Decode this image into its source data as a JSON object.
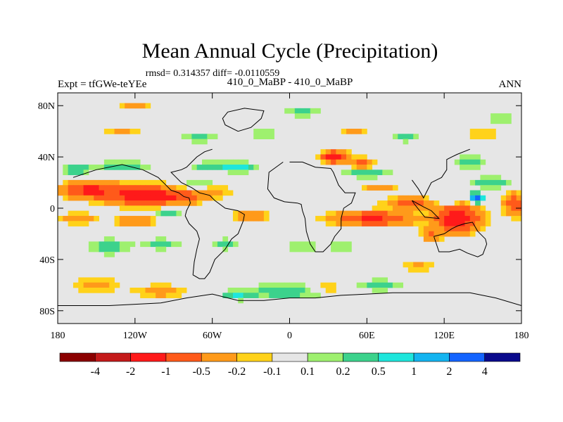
{
  "chart_data": {
    "type": "heatmap",
    "title": "Mean Annual Cycle (Precipitation)",
    "subtitle": "rmsd= 0.314357 diff= -0.0110559",
    "left_string": "Expt = tfGWe-teYEe",
    "center_string": "410_0_MaBP - 410_0_MaBP",
    "right_string": "ANN",
    "x_ticks": [
      {
        "value": -180,
        "label": "180"
      },
      {
        "value": -120,
        "label": "120W"
      },
      {
        "value": -60,
        "label": "60W"
      },
      {
        "value": 0,
        "label": "0"
      },
      {
        "value": 60,
        "label": "60E"
      },
      {
        "value": 120,
        "label": "120E"
      },
      {
        "value": 180,
        "label": "180"
      }
    ],
    "y_ticks": [
      {
        "value": 80,
        "label": "80N"
      },
      {
        "value": 40,
        "label": "40N"
      },
      {
        "value": 0,
        "label": "0"
      },
      {
        "value": -40,
        "label": "40S"
      },
      {
        "value": -80,
        "label": "80S"
      }
    ],
    "xlim": [
      -180,
      180
    ],
    "ylim": [
      -90,
      90
    ],
    "colorbar": {
      "levels": [
        -4,
        -2,
        -1,
        -0.5,
        -0.2,
        -0.1,
        0.1,
        0.2,
        0.5,
        1,
        2,
        4
      ],
      "labels": [
        "-4",
        "-2",
        "-1",
        "-0.5",
        "-0.2",
        "-0.1",
        "0.1",
        "0.2",
        "0.5",
        "1",
        "2",
        "4"
      ],
      "colors": [
        "#8b0000",
        "#c41a1a",
        "#ff1a1a",
        "#ff5a1a",
        "#ff9a1a",
        "#ffd21a",
        "#e6e6e6",
        "#9ef06e",
        "#3cd28c",
        "#1ee6dc",
        "#14b4f0",
        "#1464ff",
        "#0a0a8c"
      ]
    },
    "fields": {
      "background_value": 0.0,
      "anomalies": [
        {
          "lon": -155,
          "lat": 14,
          "rlon": 18,
          "rlat": 6,
          "value": -1.2
        },
        {
          "lon": -115,
          "lat": 10,
          "rlon": 22,
          "rlat": 7,
          "value": -1.5
        },
        {
          "lon": -85,
          "lat": 9,
          "rlon": 18,
          "rlat": 5,
          "value": -0.7
        },
        {
          "lon": -60,
          "lat": 13,
          "rlon": 12,
          "rlat": 4,
          "value": -0.4
        },
        {
          "lon": -165,
          "lat": -8,
          "rlon": 14,
          "rlat": 4,
          "value": -0.4
        },
        {
          "lon": -120,
          "lat": -10,
          "rlon": 14,
          "rlat": 4,
          "value": -0.6
        },
        {
          "lon": -95,
          "lat": -4,
          "rlon": 10,
          "rlat": 3,
          "value": 0.3
        },
        {
          "lon": 65,
          "lat": -8,
          "rlon": 28,
          "rlat": 5,
          "value": -1.1
        },
        {
          "lon": 95,
          "lat": 4,
          "rlon": 18,
          "rlat": 4,
          "value": -0.7
        },
        {
          "lon": 130,
          "lat": -8,
          "rlon": 15,
          "rlat": 9,
          "value": -1.6
        },
        {
          "lon": 110,
          "lat": -20,
          "rlon": 8,
          "rlat": 5,
          "value": -0.5
        },
        {
          "lon": 35,
          "lat": 40,
          "rlon": 9,
          "rlat": 4,
          "value": -1.4
        },
        {
          "lon": 55,
          "lat": 35,
          "rlon": 10,
          "rlat": 4,
          "value": -0.6
        },
        {
          "lon": 70,
          "lat": 16,
          "rlon": 12,
          "rlat": 3,
          "value": -0.4
        },
        {
          "lon": 175,
          "lat": 3,
          "rlon": 8,
          "rlat": 8,
          "value": -0.8
        },
        {
          "lon": -30,
          "lat": -6,
          "rlon": 14,
          "rlat": 4,
          "value": -0.4
        },
        {
          "lon": -60,
          "lat": 33,
          "rlon": 14,
          "rlat": 3,
          "value": 0.4
        },
        {
          "lon": -40,
          "lat": 32,
          "rlon": 10,
          "rlat": 3,
          "value": 0.9
        },
        {
          "lon": -130,
          "lat": 33,
          "rlon": 20,
          "rlat": 3,
          "value": 0.4
        },
        {
          "lon": -165,
          "lat": 30,
          "rlon": 10,
          "rlat": 3,
          "value": 0.5
        },
        {
          "lon": -70,
          "lat": 18,
          "rlon": 12,
          "rlat": 3,
          "value": 0.3
        },
        {
          "lon": 60,
          "lat": 28,
          "rlon": 20,
          "rlat": 4,
          "value": 0.3
        },
        {
          "lon": 140,
          "lat": 36,
          "rlon": 10,
          "rlat": 5,
          "value": 0.3
        },
        {
          "lon": 155,
          "lat": 20,
          "rlon": 14,
          "rlat": 4,
          "value": 0.4
        },
        {
          "lon": 145,
          "lat": 8,
          "rlon": 4,
          "rlat": 3,
          "value": 2.5
        },
        {
          "lon": 120,
          "lat": 5,
          "rlon": 10,
          "rlat": 4,
          "value": 0.3
        },
        {
          "lon": -140,
          "lat": -30,
          "rlon": 16,
          "rlat": 6,
          "value": 0.3
        },
        {
          "lon": -100,
          "lat": -28,
          "rlon": 14,
          "rlat": 4,
          "value": 0.3
        },
        {
          "lon": -50,
          "lat": -28,
          "rlon": 10,
          "rlat": 4,
          "value": 0.3
        },
        {
          "lon": 10,
          "lat": -30,
          "rlon": 10,
          "rlat": 3,
          "value": 0.3
        },
        {
          "lon": 40,
          "lat": -30,
          "rlon": 12,
          "rlat": 3,
          "value": 0.3
        },
        {
          "lon": -5,
          "lat": -65,
          "rlon": 30,
          "rlat": 6,
          "value": 0.3
        },
        {
          "lon": 70,
          "lat": -60,
          "rlon": 18,
          "rlat": 4,
          "value": 0.3
        },
        {
          "lon": -40,
          "lat": -68,
          "rlon": 10,
          "rlat": 3,
          "value": 0.5
        },
        {
          "lon": -100,
          "lat": -65,
          "rlon": 20,
          "rlat": 5,
          "value": -0.3
        },
        {
          "lon": -150,
          "lat": -60,
          "rlon": 18,
          "rlat": 5,
          "value": -0.3
        },
        {
          "lon": 30,
          "lat": -62,
          "rlon": 12,
          "rlat": 3,
          "value": -0.3
        },
        {
          "lon": 100,
          "lat": -45,
          "rlon": 10,
          "rlat": 4,
          "value": -0.3
        },
        {
          "lon": -70,
          "lat": 55,
          "rlon": 14,
          "rlat": 3,
          "value": 0.3
        },
        {
          "lon": -20,
          "lat": 58,
          "rlon": 12,
          "rlat": 3,
          "value": 0.3
        },
        {
          "lon": 90,
          "lat": 55,
          "rlon": 12,
          "rlat": 3,
          "value": 0.3
        },
        {
          "lon": 150,
          "lat": 58,
          "rlon": 10,
          "rlat": 3,
          "value": -0.3
        },
        {
          "lon": -130,
          "lat": 60,
          "rlon": 12,
          "rlat": 3,
          "value": -0.3
        },
        {
          "lon": 50,
          "lat": 60,
          "rlon": 10,
          "rlat": 3,
          "value": -0.3
        },
        {
          "lon": 165,
          "lat": 70,
          "rlon": 10,
          "rlat": 3,
          "value": 0.3
        },
        {
          "lon": 10,
          "lat": 75,
          "rlon": 14,
          "rlat": 3,
          "value": 0.3
        },
        {
          "lon": -120,
          "lat": 80,
          "rlon": 12,
          "rlat": 2,
          "value": -0.3
        }
      ]
    },
    "coastlines": [
      [
        [
          -168,
          24
        ],
        [
          -150,
          30
        ],
        [
          -130,
          34
        ],
        [
          -114,
          30
        ],
        [
          -102,
          24
        ],
        [
          -96,
          18
        ],
        [
          -92,
          14
        ],
        [
          -86,
          12
        ],
        [
          -82,
          9
        ],
        [
          -78,
          8
        ],
        [
          -77,
          4
        ],
        [
          -80,
          -2
        ],
        [
          -81,
          -6
        ],
        [
          -78,
          -12
        ],
        [
          -72,
          -18
        ],
        [
          -70,
          -24
        ],
        [
          -72,
          -32
        ],
        [
          -74,
          -42
        ],
        [
          -75,
          -52
        ],
        [
          -70,
          -55
        ],
        [
          -66,
          -55
        ],
        [
          -62,
          -50
        ],
        [
          -58,
          -40
        ],
        [
          -50,
          -32
        ],
        [
          -45,
          -24
        ],
        [
          -40,
          -20
        ],
        [
          -36,
          -10
        ],
        [
          -35,
          -5
        ],
        [
          -40,
          -2
        ],
        [
          -50,
          0
        ],
        [
          -58,
          6
        ],
        [
          -62,
          10
        ],
        [
          -70,
          12
        ],
        [
          -76,
          16
        ],
        [
          -84,
          20
        ],
        [
          -88,
          24
        ],
        [
          -92,
          28
        ],
        [
          -84,
          30
        ],
        [
          -80,
          32
        ],
        [
          -76,
          36
        ],
        [
          -72,
          40
        ],
        [
          -66,
          44
        ],
        [
          -60,
          46
        ]
      ],
      [
        [
          -5,
          36
        ],
        [
          -16,
          28
        ],
        [
          -17,
          15
        ],
        [
          -12,
          8
        ],
        [
          -4,
          5
        ],
        [
          6,
          4
        ],
        [
          9,
          3
        ],
        [
          10,
          -2
        ],
        [
          12,
          -8
        ],
        [
          13,
          -18
        ],
        [
          16,
          -28
        ],
        [
          20,
          -34
        ],
        [
          26,
          -34
        ],
        [
          32,
          -28
        ],
        [
          35,
          -22
        ],
        [
          40,
          -16
        ],
        [
          40,
          -8
        ],
        [
          42,
          0
        ],
        [
          48,
          4
        ],
        [
          51,
          12
        ],
        [
          43,
          12
        ],
        [
          38,
          18
        ],
        [
          34,
          28
        ],
        [
          32,
          31
        ],
        [
          20,
          32
        ],
        [
          10,
          36
        ],
        [
          0,
          36
        ]
      ],
      [
        [
          112,
          -22
        ],
        [
          116,
          -34
        ],
        [
          124,
          -34
        ],
        [
          132,
          -32
        ],
        [
          138,
          -35
        ],
        [
          146,
          -38
        ],
        [
          150,
          -36
        ],
        [
          153,
          -28
        ],
        [
          152,
          -24
        ],
        [
          146,
          -18
        ],
        [
          142,
          -11
        ],
        [
          136,
          -12
        ],
        [
          130,
          -14
        ],
        [
          126,
          -16
        ],
        [
          120,
          -20
        ],
        [
          112,
          -22
        ]
      ],
      [
        [
          -180,
          -76
        ],
        [
          -140,
          -76
        ],
        [
          -100,
          -74
        ],
        [
          -80,
          -70
        ],
        [
          -60,
          -67
        ],
        [
          -40,
          -72
        ],
        [
          -20,
          -72
        ],
        [
          0,
          -70
        ],
        [
          20,
          -70
        ],
        [
          40,
          -68
        ],
        [
          60,
          -67
        ],
        [
          80,
          -66
        ],
        [
          100,
          -66
        ],
        [
          120,
          -66
        ],
        [
          140,
          -66
        ],
        [
          160,
          -70
        ],
        [
          180,
          -76
        ]
      ],
      [
        [
          -40,
          60
        ],
        [
          -50,
          65
        ],
        [
          -52,
          70
        ],
        [
          -48,
          75
        ],
        [
          -35,
          78
        ],
        [
          -20,
          76
        ],
        [
          -22,
          70
        ],
        [
          -30,
          63
        ],
        [
          -40,
          60
        ]
      ],
      [
        [
          95,
          22
        ],
        [
          100,
          15
        ],
        [
          104,
          8
        ],
        [
          106,
          12
        ],
        [
          110,
          20
        ],
        [
          118,
          24
        ],
        [
          122,
          30
        ],
        [
          122,
          38
        ],
        [
          126,
          40
        ],
        [
          130,
          42
        ],
        [
          140,
          46
        ]
      ],
      [
        [
          95,
          6
        ],
        [
          104,
          1
        ],
        [
          110,
          -2
        ],
        [
          116,
          -8
        ],
        [
          105,
          -7
        ],
        [
          97,
          3
        ],
        [
          95,
          6
        ]
      ]
    ]
  }
}
